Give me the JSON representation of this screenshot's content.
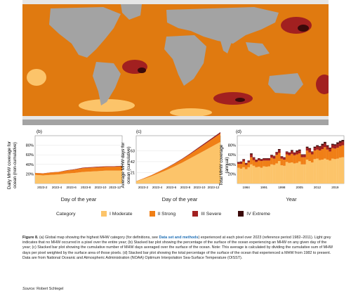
{
  "map": {
    "colors": {
      "ocean": "#e07a10",
      "land": "#a3a3a3",
      "no_mhw": "#e6e6e6"
    }
  },
  "panels": [
    {
      "id": "b",
      "tag": "(b)",
      "ylabel_lines": [
        "Daily MHW coverage for",
        "ocean (non-cumulative)"
      ],
      "xlabel": "Day of the year",
      "xticks": [
        "2023-2",
        "2023-4",
        "2023-6",
        "2023-8",
        "2023-10",
        "2023-12"
      ]
    },
    {
      "id": "c",
      "tag": "(c)",
      "ylabel_lines": [
        "Average MHW days for",
        "ocean (cumulative)"
      ],
      "xlabel": "Day of the year",
      "xticks": [
        "2023-2",
        "2023-4",
        "2023-6",
        "2023-8",
        "2023-10",
        "2023-12"
      ]
    },
    {
      "id": "d",
      "tag": "(d)",
      "ylabel_lines": [
        "Total MHW coverage",
        "(annual)"
      ],
      "xlabel": "Year",
      "xticks": [
        "1984",
        "1991",
        "1998",
        "2005",
        "2012",
        "2019"
      ]
    }
  ],
  "legend": {
    "title": "Category",
    "items": [
      {
        "label": "I Moderate",
        "color": "#fcc46a"
      },
      {
        "label": "II Strong",
        "color": "#f07f16"
      },
      {
        "label": "III Severe",
        "color": "#a22020"
      },
      {
        "label": "IV Extreme",
        "color": "#3b0a0a"
      }
    ]
  },
  "caption": {
    "lead": "Figure 8.",
    "part1": " (a) Global map showing the highest MHW category (for definitions, see ",
    "link": "Data set and methods",
    "part2": ") experienced at each pixel over 2023 (reference period 1982–2011). Light grey indicates that no MHW occurred in a pixel over the entire year; (b) Stacked bar plot showing the percentage of the surface of the ocean experiencing an MHW on any given day of the year; (c) Stacked bar plot showing the cumulative number of MHW days averaged over the surface of the ocean. Note: This average is calculated by dividing the cumulative sum of MHW days per pixel weighted by the surface area of those pixels. (d) Stacked bar plot showing the total percentage of the surface of the ocean that experienced a MHW from 1982 to present. Data are from National Oceanic and Atmospheric Administration (NOAA) Optimum Interpolation Sea-Surface Temperature (OISST).",
    "source_label": "Source:",
    "source_text": " Robert Schlegel"
  },
  "chart_data": [
    {
      "type": "area",
      "name": "b",
      "x": [
        "2023-01",
        "2023-02",
        "2023-03",
        "2023-04",
        "2023-05",
        "2023-06",
        "2023-07",
        "2023-08",
        "2023-09",
        "2023-10",
        "2023-11",
        "2023-12"
      ],
      "series": [
        {
          "name": "I Moderate",
          "values": [
            18,
            17,
            18,
            19,
            21,
            22,
            24,
            25,
            26,
            27,
            27,
            27
          ]
        },
        {
          "name": "II Strong",
          "values": [
            4,
            4,
            5,
            5,
            6,
            7,
            8,
            8,
            8,
            8,
            8,
            9
          ]
        },
        {
          "name": "III Severe",
          "values": [
            0.3,
            0.3,
            0.4,
            0.5,
            0.6,
            0.8,
            1.0,
            1.1,
            1.1,
            1.0,
            1.0,
            1.0
          ]
        },
        {
          "name": "IV Extreme",
          "values": [
            0,
            0,
            0,
            0,
            0.1,
            0.1,
            0.1,
            0.1,
            0.1,
            0.1,
            0.1,
            0.1
          ]
        }
      ],
      "yticks": [
        "20%",
        "40%",
        "60%",
        "80%"
      ],
      "ylim": [
        0,
        100
      ]
    },
    {
      "type": "area",
      "name": "c",
      "x": [
        "2023-01",
        "2023-02",
        "2023-03",
        "2023-04",
        "2023-05",
        "2023-06",
        "2023-07",
        "2023-08",
        "2023-09",
        "2023-10",
        "2023-11",
        "2023-12"
      ],
      "series": [
        {
          "name": "I Moderate",
          "values": [
            4,
            9,
            14,
            20,
            26,
            33,
            40,
            48,
            56,
            64,
            72,
            80
          ]
        },
        {
          "name": "II Strong",
          "values": [
            0.5,
            1,
            2,
            3,
            4,
            5,
            6.5,
            8,
            10,
            12,
            14,
            16
          ]
        },
        {
          "name": "III Severe",
          "values": [
            0,
            0.1,
            0.2,
            0.3,
            0.5,
            0.7,
            1,
            1.3,
            1.6,
            1.9,
            2.2,
            2.5
          ]
        },
        {
          "name": "IV Extreme",
          "values": [
            0,
            0,
            0,
            0.05,
            0.1,
            0.15,
            0.2,
            0.25,
            0.3,
            0.35,
            0.4,
            0.45
          ]
        }
      ],
      "yticks": [
        "21",
        "42",
        "63"
      ],
      "yticks_vals": [
        21,
        42,
        63
      ],
      "ylim": [
        0,
        92
      ]
    },
    {
      "type": "bar",
      "name": "d",
      "categories": [
        1982,
        1983,
        1984,
        1985,
        1986,
        1987,
        1988,
        1989,
        1990,
        1991,
        1992,
        1993,
        1994,
        1995,
        1996,
        1997,
        1998,
        1999,
        2000,
        2001,
        2002,
        2003,
        2004,
        2005,
        2006,
        2007,
        2008,
        2009,
        2010,
        2011,
        2012,
        2013,
        2014,
        2015,
        2016,
        2017,
        2018,
        2019,
        2020,
        2021,
        2022,
        2023
      ],
      "series": [
        {
          "name": "I Moderate",
          "values": [
            33,
            31,
            34,
            30,
            34,
            40,
            37,
            34,
            35,
            33,
            36,
            35,
            36,
            40,
            39,
            42,
            47,
            38,
            37,
            45,
            43,
            44,
            42,
            43,
            46,
            40,
            40,
            50,
            47,
            44,
            51,
            52,
            49,
            50,
            52,
            50,
            48,
            52,
            51,
            52,
            54,
            55
          ]
        },
        {
          "name": "II Strong",
          "values": [
            8,
            10,
            12,
            9,
            10,
            15,
            12,
            11,
            13,
            14,
            12,
            13,
            12,
            14,
            13,
            18,
            17,
            14,
            13,
            16,
            16,
            18,
            17,
            18,
            17,
            15,
            15,
            19,
            18,
            17,
            18,
            19,
            20,
            22,
            24,
            21,
            19,
            22,
            22,
            23,
            24,
            25
          ]
        },
        {
          "name": "III Severe",
          "values": [
            3,
            4,
            4,
            3,
            3,
            6,
            5,
            4,
            4,
            3,
            4,
            4,
            4,
            5,
            5,
            5,
            6,
            4,
            4,
            5,
            5,
            6,
            5,
            6,
            6,
            5,
            5,
            6,
            7,
            5,
            6,
            7,
            7,
            8,
            8,
            7,
            6,
            7,
            7,
            8,
            8,
            8
          ]
        },
        {
          "name": "IV Extreme",
          "values": [
            1,
            1,
            1,
            1,
            1,
            2,
            1,
            1,
            1,
            1,
            1,
            1,
            1,
            1,
            1,
            1,
            2,
            1,
            1,
            1,
            1,
            2,
            1,
            2,
            2,
            1,
            1,
            2,
            2,
            1,
            2,
            2,
            2,
            3,
            3,
            2,
            2,
            2,
            2,
            3,
            3,
            3
          ]
        }
      ],
      "yticks": [
        "20%",
        "40%",
        "60%",
        "80%"
      ],
      "ylim": [
        0,
        100
      ]
    }
  ]
}
